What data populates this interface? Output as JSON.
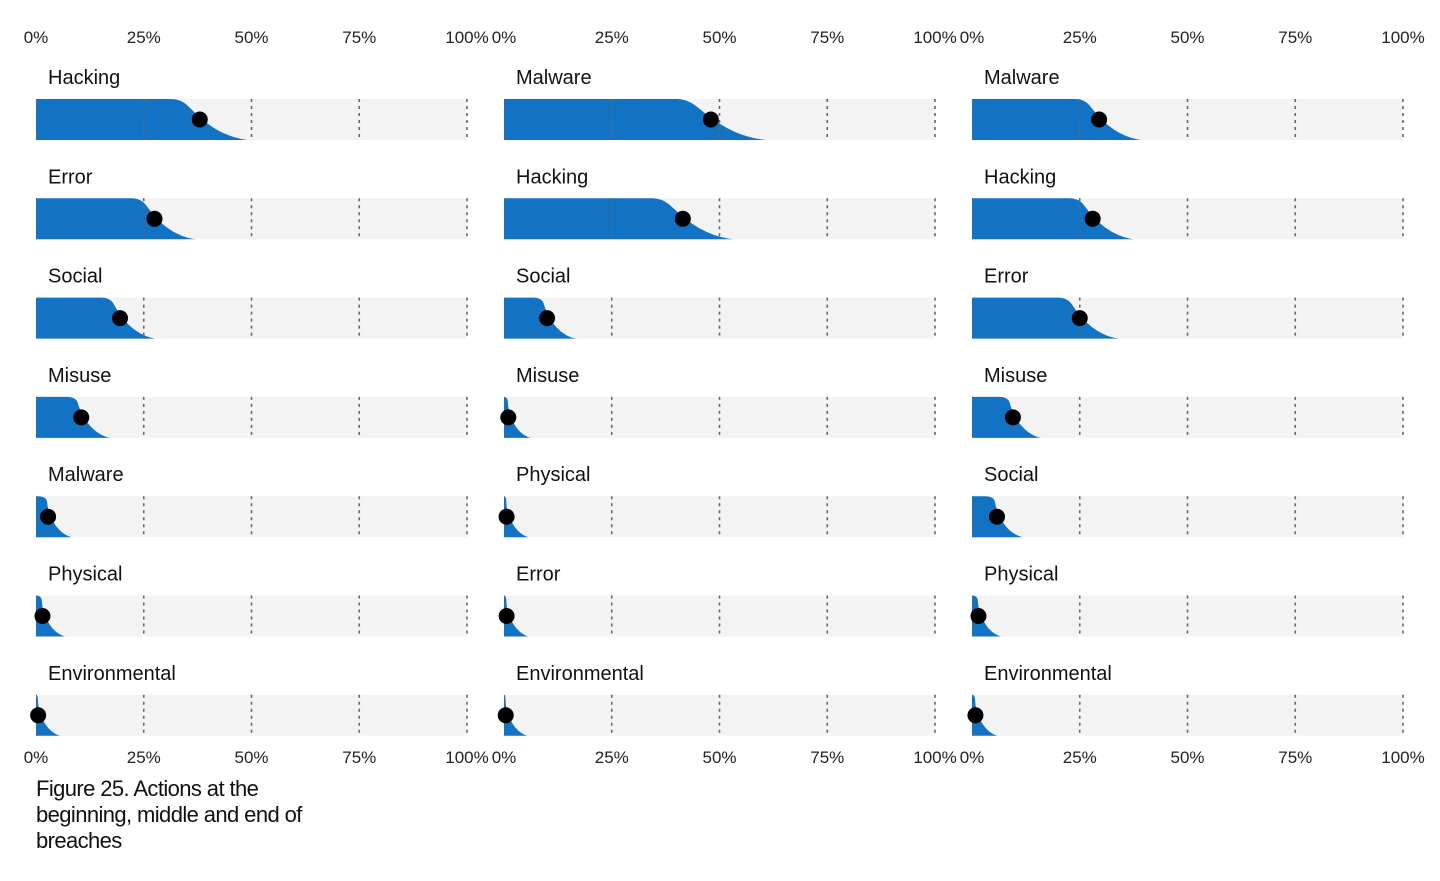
{
  "caption": "Figure 25. Actions at the beginning, middle and end of breaches",
  "colors": {
    "fill": "#1273c4",
    "track": "#f3f3f3",
    "dot": "#000000",
    "grid": "#666666"
  },
  "chart_data": [
    {
      "type": "bar",
      "title": "",
      "xlim": [
        0,
        100
      ],
      "ticks": [
        "0%",
        "25%",
        "50%",
        "75%",
        "100%"
      ],
      "categories": [
        "Hacking",
        "Error",
        "Social",
        "Misuse",
        "Malware",
        "Physical",
        "Environmental"
      ],
      "values": [
        38,
        27.5,
        19.5,
        10.5,
        2.8,
        1.5,
        0.5
      ]
    },
    {
      "type": "bar",
      "title": "",
      "xlim": [
        0,
        100
      ],
      "ticks": [
        "0%",
        "25%",
        "50%",
        "75%",
        "100%"
      ],
      "categories": [
        "Malware",
        "Hacking",
        "Social",
        "Misuse",
        "Physical",
        "Error",
        "Environmental"
      ],
      "values": [
        48,
        41.5,
        10,
        1,
        0.6,
        0.6,
        0.4
      ]
    },
    {
      "type": "bar",
      "title": "",
      "xlim": [
        0,
        100
      ],
      "ticks": [
        "0%",
        "25%",
        "50%",
        "75%",
        "100%"
      ],
      "categories": [
        "Malware",
        "Hacking",
        "Error",
        "Misuse",
        "Social",
        "Physical",
        "Environmental"
      ],
      "values": [
        29.5,
        28,
        25,
        9.5,
        5.8,
        1.5,
        0.8
      ]
    }
  ]
}
